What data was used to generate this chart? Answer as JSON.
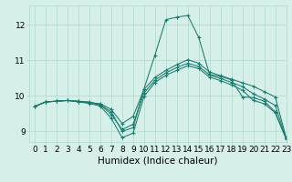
{
  "xlabel": "Humidex (Indice chaleur)",
  "bg_color": "#d6efe8",
  "line_color": "#1a7a6e",
  "grid_color": "#b0d8ce",
  "xlim": [
    -0.5,
    23
  ],
  "ylim": [
    8.7,
    12.55
  ],
  "yticks": [
    9,
    10,
    11,
    12
  ],
  "xticks": [
    0,
    1,
    2,
    3,
    4,
    5,
    6,
    7,
    8,
    9,
    10,
    11,
    12,
    13,
    14,
    15,
    16,
    17,
    18,
    19,
    20,
    21,
    22,
    23
  ],
  "series": [
    [
      9.7,
      9.83,
      9.85,
      9.87,
      9.85,
      9.83,
      9.75,
      9.55,
      9.0,
      9.1,
      10.2,
      11.15,
      12.15,
      12.22,
      12.27,
      11.65,
      10.6,
      10.55,
      10.45,
      9.97,
      9.95,
      9.85,
      9.55,
      8.8
    ],
    [
      9.7,
      9.83,
      9.85,
      9.87,
      9.85,
      9.81,
      9.78,
      9.62,
      9.22,
      9.42,
      10.18,
      10.52,
      10.72,
      10.88,
      11.02,
      10.92,
      10.67,
      10.57,
      10.47,
      10.37,
      10.27,
      10.12,
      9.97,
      8.82
    ],
    [
      9.7,
      9.83,
      9.85,
      9.87,
      9.83,
      9.79,
      9.71,
      9.37,
      8.82,
      8.95,
      9.98,
      10.38,
      10.58,
      10.72,
      10.85,
      10.77,
      10.53,
      10.43,
      10.31,
      10.16,
      9.87,
      9.78,
      9.52,
      8.78
    ],
    [
      9.7,
      9.83,
      9.85,
      9.87,
      9.84,
      9.8,
      9.75,
      9.48,
      9.05,
      9.2,
      10.08,
      10.44,
      10.65,
      10.8,
      10.92,
      10.83,
      10.59,
      10.49,
      10.38,
      10.26,
      10.06,
      9.91,
      9.73,
      8.8
    ]
  ],
  "tick_fontsize": 6.5,
  "xlabel_fontsize": 7.5
}
